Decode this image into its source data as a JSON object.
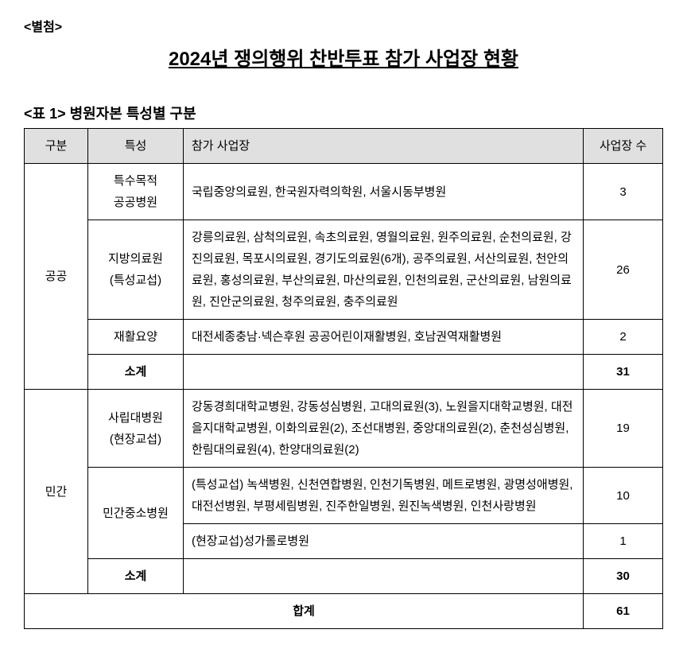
{
  "attachment_label": "<별첨>",
  "title": "2024년 쟁의행위 찬반투표 참가 사업장 현황",
  "table_caption": "<표 1> 병원자본 특성별 구분",
  "headers": {
    "category": "구분",
    "type": "특성",
    "list": "참가 사업장",
    "count": "사업장 수"
  },
  "category_public": "공공",
  "category_private": "민간",
  "rows": {
    "public1": {
      "type": "특수목적\n공공병원",
      "list": "국립중앙의료원, 한국원자력의학원, 서울시동부병원",
      "count": "3"
    },
    "public2": {
      "type": "지방의료원\n(특성교섭)",
      "list": "강릉의료원, 삼척의료원, 속초의료원, 영월의료원, 원주의료원, 순천의료원, 강진의료원, 목포시의료원, 경기도의료원(6개), 공주의료원, 서산의료원, 천안의료원, 홍성의료원, 부산의료원, 마산의료원, 인천의료원, 군산의료원, 남원의료원, 진안군의료원, 청주의료원, 충주의료원",
      "count": "26"
    },
    "public3": {
      "type": "재활요양",
      "list": "대전세종충남·넥슨후원 공공어린이재활병원,  호남권역재활병원",
      "count": "2"
    },
    "public_sub": {
      "label": "소계",
      "count": "31"
    },
    "private1": {
      "type": "사립대병원\n(현장교섭)",
      "list": "강동경희대학교병원, 강동성심병원, 고대의료원(3), 노원을지대학교병원, 대전을지대학교병원, 이화의료원(2), 조선대병원, 중앙대의료원(2), 춘천성심병원, 한림대의료원(4), 한양대의료원(2)",
      "count": "19"
    },
    "private2a": {
      "type": "민간중소병원",
      "list": "(특성교섭) 녹색병원, 신천연합병원, 인천기독병원, 메트로병원, 광명성애병원, 대전선병원, 부평세림병원, 진주한일병원, 원진녹색병원, 인천사랑병원",
      "count": "10"
    },
    "private2b": {
      "list": "(현장교섭)성가롤로병원",
      "count": "1"
    },
    "private_sub": {
      "label": "소계",
      "count": "30"
    },
    "total": {
      "label": "합계",
      "count": "61"
    }
  }
}
